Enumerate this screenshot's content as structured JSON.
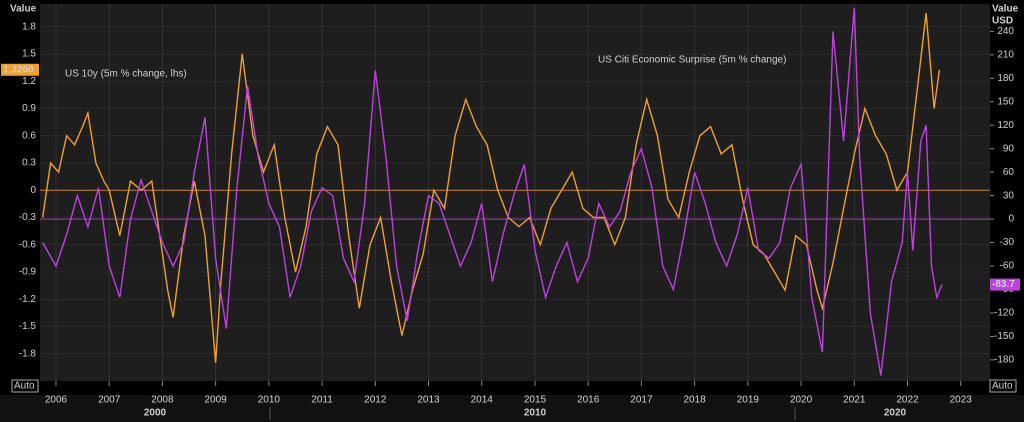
{
  "chart_data": {
    "type": "line",
    "y_axis_label": "Value",
    "y2_axis_label": "Value",
    "y2_unit": "USD",
    "axis_mode_labels": [
      "Auto",
      "Auto"
    ],
    "decade_labels": [
      "2000",
      "2010",
      "2020"
    ],
    "last_value_labels": [
      "1.3260",
      "-83.7"
    ],
    "xlim": [
      2005.7,
      2023.55
    ],
    "xticks": [
      2006,
      2007,
      2008,
      2009,
      2010,
      2011,
      2012,
      2013,
      2014,
      2015,
      2016,
      2017,
      2018,
      2019,
      2020,
      2021,
      2022,
      2023
    ],
    "ylim": [
      -2.1,
      2.05
    ],
    "yticks": [
      1.8,
      1.5,
      1.2,
      0.9,
      0.6,
      0.3,
      0,
      -0.3,
      -0.6,
      -0.9,
      -1.2,
      -1.5,
      -1.8
    ],
    "y2lim": [
      -207,
      275
    ],
    "y2ticks": [
      240,
      210,
      180,
      150,
      120,
      90,
      60,
      30,
      0,
      -30,
      -60,
      -90,
      -120,
      -150,
      -180
    ],
    "grid": true,
    "series": [
      {
        "name": "US 10y (5m % change, lhs)",
        "color": "#f2a02a",
        "axis": "y",
        "x": [
          2005.75,
          2005.9,
          2006.05,
          2006.2,
          2006.35,
          2006.5,
          2006.6,
          2006.75,
          2006.9,
          2007.0,
          2007.2,
          2007.4,
          2007.6,
          2007.8,
          2007.9,
          2008.1,
          2008.2,
          2008.4,
          2008.6,
          2008.8,
          2009.0,
          2009.1,
          2009.3,
          2009.5,
          2009.7,
          2009.9,
          2010.1,
          2010.3,
          2010.5,
          2010.7,
          2010.9,
          2011.1,
          2011.3,
          2011.5,
          2011.7,
          2011.9,
          2012.1,
          2012.3,
          2012.5,
          2012.7,
          2012.9,
          2013.1,
          2013.3,
          2013.5,
          2013.7,
          2013.9,
          2014.1,
          2014.3,
          2014.5,
          2014.7,
          2014.9,
          2015.1,
          2015.3,
          2015.5,
          2015.7,
          2015.9,
          2016.1,
          2016.3,
          2016.5,
          2016.7,
          2016.9,
          2017.1,
          2017.3,
          2017.5,
          2017.7,
          2017.9,
          2018.1,
          2018.3,
          2018.5,
          2018.7,
          2018.9,
          2019.1,
          2019.3,
          2019.5,
          2019.7,
          2019.9,
          2020.1,
          2020.3,
          2020.4,
          2020.6,
          2020.8,
          2021.0,
          2021.2,
          2021.4,
          2021.6,
          2021.8,
          2022.0,
          2022.2,
          2022.35,
          2022.5,
          2022.6
        ],
        "values": [
          -0.3,
          0.3,
          0.2,
          0.6,
          0.5,
          0.7,
          0.85,
          0.3,
          0.1,
          0.0,
          -0.5,
          0.1,
          0.0,
          0.1,
          -0.3,
          -1.1,
          -1.4,
          -0.5,
          0.1,
          -0.5,
          -1.9,
          -1.0,
          0.4,
          1.5,
          0.6,
          0.2,
          0.5,
          -0.3,
          -0.9,
          -0.4,
          0.4,
          0.7,
          0.5,
          -0.5,
          -1.3,
          -0.6,
          -0.3,
          -1.0,
          -1.6,
          -1.1,
          -0.7,
          0.0,
          -0.2,
          0.6,
          1.0,
          0.7,
          0.5,
          0.0,
          -0.3,
          -0.4,
          -0.3,
          -0.6,
          -0.2,
          0.0,
          0.2,
          -0.2,
          -0.3,
          -0.3,
          -0.6,
          -0.3,
          0.5,
          1.0,
          0.6,
          -0.1,
          -0.3,
          0.2,
          0.6,
          0.7,
          0.4,
          0.5,
          -0.1,
          -0.6,
          -0.7,
          -0.9,
          -1.1,
          -0.5,
          -0.6,
          -1.1,
          -1.3,
          -0.8,
          -0.2,
          0.4,
          0.9,
          0.6,
          0.4,
          0.0,
          0.2,
          1.2,
          1.95,
          0.9,
          1.326
        ]
      },
      {
        "name": "US Citi Economic Surprise (5m % change)",
        "color": "#c040e0",
        "axis": "y2",
        "x": [
          2005.75,
          2006.0,
          2006.2,
          2006.4,
          2006.6,
          2006.8,
          2007.0,
          2007.2,
          2007.4,
          2007.6,
          2007.8,
          2008.0,
          2008.2,
          2008.4,
          2008.6,
          2008.8,
          2009.0,
          2009.2,
          2009.4,
          2009.6,
          2009.8,
          2010.0,
          2010.2,
          2010.4,
          2010.6,
          2010.8,
          2011.0,
          2011.2,
          2011.4,
          2011.6,
          2011.8,
          2012.0,
          2012.2,
          2012.4,
          2012.6,
          2012.8,
          2013.0,
          2013.2,
          2013.4,
          2013.6,
          2013.8,
          2014.0,
          2014.2,
          2014.4,
          2014.6,
          2014.8,
          2015.0,
          2015.2,
          2015.4,
          2015.6,
          2015.8,
          2016.0,
          2016.2,
          2016.4,
          2016.6,
          2016.8,
          2017.0,
          2017.2,
          2017.4,
          2017.6,
          2017.8,
          2018.0,
          2018.2,
          2018.4,
          2018.6,
          2018.8,
          2019.0,
          2019.2,
          2019.4,
          2019.6,
          2019.8,
          2020.0,
          2020.2,
          2020.4,
          2020.6,
          2020.8,
          2021.0,
          2021.1,
          2021.3,
          2021.5,
          2021.7,
          2021.9,
          2022.0,
          2022.1,
          2022.25,
          2022.35,
          2022.45,
          2022.55,
          2022.65
        ],
        "values": [
          -30,
          -60,
          -20,
          30,
          -10,
          40,
          -60,
          -100,
          0,
          50,
          10,
          -30,
          -60,
          -30,
          60,
          130,
          -50,
          -140,
          40,
          170,
          80,
          20,
          -10,
          -100,
          -60,
          10,
          40,
          30,
          -50,
          -80,
          20,
          190,
          80,
          -60,
          -130,
          -40,
          30,
          20,
          -20,
          -60,
          -30,
          20,
          -80,
          -20,
          30,
          70,
          -40,
          -100,
          -60,
          -30,
          -80,
          -50,
          20,
          -10,
          10,
          60,
          90,
          40,
          -60,
          -90,
          -20,
          60,
          20,
          -30,
          -60,
          -20,
          40,
          -40,
          -50,
          -30,
          40,
          70,
          -100,
          -170,
          240,
          100,
          270,
          80,
          -120,
          -200,
          -80,
          -30,
          60,
          -40,
          100,
          120,
          -60,
          -100,
          -83.7
        ]
      }
    ]
  }
}
